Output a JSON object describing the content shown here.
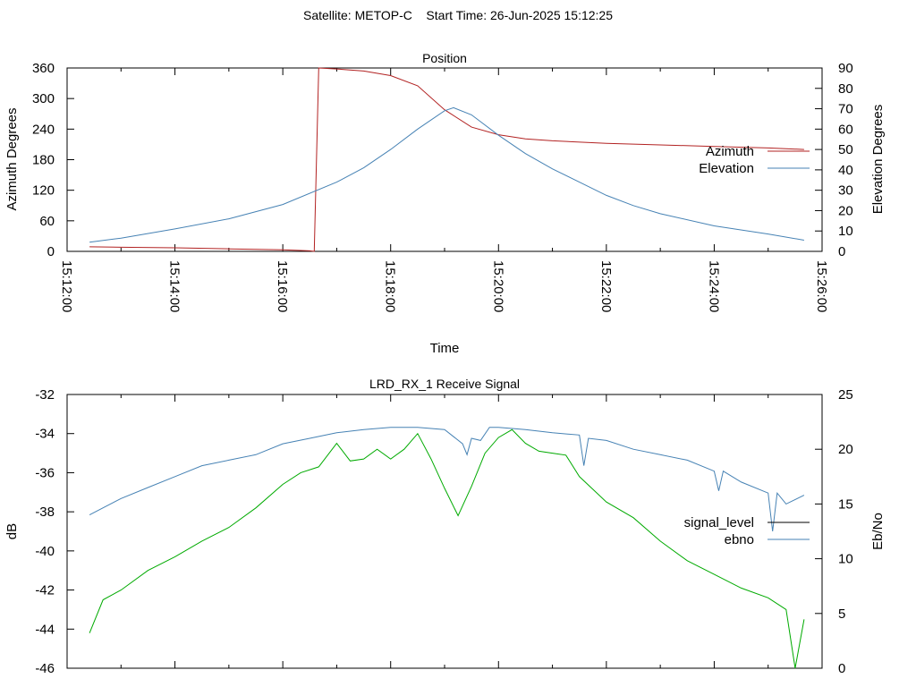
{
  "page": {
    "header": "Satellite: METOP-C    Start Time: 26-Jun-2025 15:12:25"
  },
  "chart_data": [
    {
      "type": "line",
      "title": "Position",
      "xlabel": "Time",
      "ylabel": "Azimuth Degrees",
      "y2label": "Elevation Degrees",
      "xlim": [
        "15:12:00",
        "15:26:00"
      ],
      "ylim": [
        0,
        360
      ],
      "y2lim": [
        0,
        90
      ],
      "x_ticks": [
        "15:12:00",
        "15:14:00",
        "15:16:00",
        "15:18:00",
        "15:20:00",
        "15:22:00",
        "15:24:00",
        "15:26:00"
      ],
      "y_ticks": [
        "0",
        "60",
        "120",
        "180",
        "240",
        "300",
        "360"
      ],
      "y2_ticks": [
        "0",
        "10",
        "20",
        "30",
        "40",
        "50",
        "60",
        "70",
        "80",
        "90"
      ],
      "legend_position": "right",
      "series": [
        {
          "name": "Azimuth",
          "axis": "y",
          "color": "#b22222",
          "x": [
            "15:12:25",
            "15:13:00",
            "15:14:00",
            "15:15:00",
            "15:16:00",
            "15:16:30",
            "15:16:35",
            "15:16:40",
            "15:17:00",
            "15:17:30",
            "15:18:00",
            "15:18:30",
            "15:19:00",
            "15:19:30",
            "15:20:00",
            "15:20:30",
            "15:21:00",
            "15:22:00",
            "15:23:00",
            "15:24:00",
            "15:25:00",
            "15:25:40"
          ],
          "values": [
            9,
            8,
            7,
            5,
            3,
            1,
            0,
            360,
            358,
            354,
            345,
            325,
            278,
            244,
            229,
            221,
            217,
            212,
            209,
            206,
            203,
            200
          ]
        },
        {
          "name": "Elevation",
          "axis": "y2",
          "color": "#4682b4",
          "x": [
            "15:12:25",
            "15:13:00",
            "15:14:00",
            "15:15:00",
            "15:16:00",
            "15:17:00",
            "15:17:30",
            "15:18:00",
            "15:18:30",
            "15:19:00",
            "15:19:10",
            "15:19:30",
            "15:20:00",
            "15:20:30",
            "15:21:00",
            "15:21:30",
            "15:22:00",
            "15:22:30",
            "15:23:00",
            "15:24:00",
            "15:25:00",
            "15:25:40"
          ],
          "values": [
            4.5,
            6.5,
            11,
            16,
            23,
            34,
            41,
            50,
            60,
            69,
            70.5,
            67,
            57,
            48,
            40.5,
            34,
            27.5,
            22.5,
            18.5,
            12.5,
            8.5,
            5.5
          ]
        }
      ]
    },
    {
      "type": "line",
      "title": "LRD_RX_1 Receive Signal",
      "ylabel": "dB",
      "y2label": "Eb/No",
      "xlim": [
        "15:12:00",
        "15:26:00"
      ],
      "ylim": [
        -46,
        -32
      ],
      "y2lim": [
        0,
        25
      ],
      "y_ticks": [
        "-46",
        "-44",
        "-42",
        "-40",
        "-38",
        "-36",
        "-34",
        "-32"
      ],
      "y2_ticks": [
        "0",
        "5",
        "10",
        "15",
        "20",
        "25"
      ],
      "legend_position": "right",
      "series": [
        {
          "name": "signal_level",
          "axis": "y",
          "color": "#000000",
          "x": [],
          "values": []
        },
        {
          "name": "ebno",
          "axis": "y2",
          "color": "#4682b4",
          "x": [
            "15:12:25",
            "15:13:00",
            "15:13:30",
            "15:14:00",
            "15:14:30",
            "15:15:00",
            "15:15:30",
            "15:16:00",
            "15:16:30",
            "15:17:00",
            "15:17:30",
            "15:18:00",
            "15:18:30",
            "15:19:00",
            "15:19:20",
            "15:19:25",
            "15:19:30",
            "15:19:40",
            "15:19:50",
            "15:20:00",
            "15:20:30",
            "15:21:00",
            "15:21:30",
            "15:21:35",
            "15:21:40",
            "15:22:00",
            "15:22:30",
            "15:23:00",
            "15:23:30",
            "15:24:00",
            "15:24:05",
            "15:24:10",
            "15:24:30",
            "15:25:00",
            "15:25:05",
            "15:25:10",
            "15:25:20",
            "15:25:40"
          ],
          "values": [
            14,
            15.5,
            16.5,
            17.5,
            18.5,
            19,
            19.5,
            20.5,
            21,
            21.5,
            21.8,
            22,
            22,
            21.8,
            20.5,
            19.5,
            21,
            20.8,
            22,
            22,
            21.8,
            21.5,
            21.3,
            18.5,
            21,
            20.8,
            20,
            19.5,
            19,
            18,
            16.2,
            18,
            17,
            16,
            12.5,
            16,
            15,
            15.8
          ]
        },
        {
          "name": "",
          "axis": "y",
          "color": "#00aa00",
          "x": [
            "15:12:25",
            "15:12:40",
            "15:13:00",
            "15:13:30",
            "15:14:00",
            "15:14:30",
            "15:15:00",
            "15:15:30",
            "15:16:00",
            "15:16:20",
            "15:16:40",
            "15:17:00",
            "15:17:15",
            "15:17:30",
            "15:17:45",
            "15:18:00",
            "15:18:15",
            "15:18:30",
            "15:18:45",
            "15:19:00",
            "15:19:15",
            "15:19:30",
            "15:19:45",
            "15:20:00",
            "15:20:15",
            "15:20:30",
            "15:20:45",
            "15:21:00",
            "15:21:15",
            "15:21:30",
            "15:22:00",
            "15:22:30",
            "15:23:00",
            "15:23:30",
            "15:24:00",
            "15:24:30",
            "15:25:00",
            "15:25:20",
            "15:25:30",
            "15:25:40"
          ],
          "values": [
            -44.2,
            -42.5,
            -42,
            -41,
            -40.3,
            -39.5,
            -38.8,
            -37.8,
            -36.6,
            -36,
            -35.7,
            -34.5,
            -35.4,
            -35.3,
            -34.8,
            -35.3,
            -34.8,
            -34,
            -35.3,
            -36.8,
            -38.2,
            -36.7,
            -35,
            -34.2,
            -33.8,
            -34.5,
            -34.9,
            -35,
            -35.1,
            -36.2,
            -37.5,
            -38.3,
            -39.5,
            -40.5,
            -41.2,
            -41.9,
            -42.4,
            -43,
            -46,
            -43.5
          ]
        }
      ]
    }
  ]
}
